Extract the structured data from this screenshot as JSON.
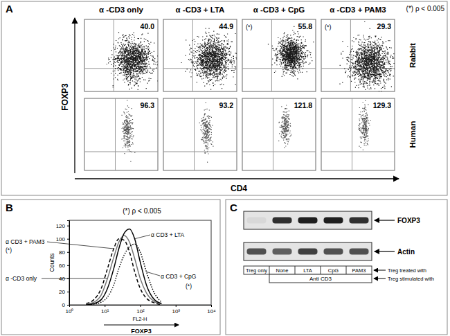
{
  "chart_data": [
    {
      "type": "dot_plot_grid",
      "panel": "A",
      "note": "(*) ρ < 0.005",
      "x_label": "CD4",
      "y_label": "FOXP3",
      "columns": [
        "α -CD3 only",
        "α -CD3 + LTA",
        "α -CD3 + CpG",
        "α -CD3 + PAM3"
      ],
      "series": [
        {
          "name": "Rabbit",
          "values": [
            40.0,
            44.9,
            55.8,
            29.3
          ],
          "value_labels": [
            "40.0",
            "44.9",
            "55.8",
            "29.3"
          ],
          "significance": [
            null,
            null,
            "(*)",
            "(*)"
          ]
        },
        {
          "name": "Human",
          "values": [
            96.3,
            93.2,
            121.8,
            129.3
          ],
          "value_labels": [
            "96.3",
            "93.2",
            "121.8",
            "129.3"
          ]
        }
      ],
      "data_labels": true,
      "tick_labels": false
    },
    {
      "type": "line",
      "panel": "B",
      "title": "(*) ρ < 0.005",
      "x_label": "FL2-H",
      "y_label": "Counts",
      "x_annotation": "FOXP3",
      "log": "x",
      "xlim": [
        1,
        10000
      ],
      "xticks": [
        {
          "value": 1,
          "label": "10⁰"
        },
        {
          "value": 10,
          "label": "10¹"
        },
        {
          "value": 100,
          "label": "10²"
        },
        {
          "value": 1000,
          "label": "10³"
        },
        {
          "value": 10000,
          "label": "10⁴"
        }
      ],
      "ylim": [
        0,
        128
      ],
      "yticks": [
        0,
        20,
        40,
        60,
        80,
        100,
        120
      ],
      "x": [
        3,
        5,
        8,
        12,
        18,
        25,
        35,
        50,
        70,
        100,
        150,
        250,
        400
      ],
      "series": [
        {
          "name": "α CD3 + PAM3",
          "significance": "(*)",
          "color": "#000000",
          "line_style": "dashed",
          "values": [
            2,
            8,
            25,
            55,
            85,
            100,
            98,
            80,
            50,
            25,
            10,
            3,
            0
          ]
        },
        {
          "name": "α -CD3 only",
          "color": "#777777",
          "line_style": "solid",
          "values": [
            1,
            4,
            15,
            40,
            72,
            95,
            105,
            95,
            70,
            40,
            18,
            5,
            1
          ]
        },
        {
          "name": "α CD3 + LTA",
          "color": "#000000",
          "line_style": "solid",
          "values": [
            0,
            2,
            8,
            25,
            55,
            85,
            108,
            115,
            100,
            65,
            30,
            8,
            2
          ]
        },
        {
          "name": "α CD3 + CpG",
          "significance": "(*)",
          "color": "#000000",
          "line_style": "dotted",
          "values": [
            0,
            1,
            4,
            12,
            30,
            55,
            75,
            88,
            92,
            80,
            50,
            18,
            4
          ]
        }
      ]
    }
  ],
  "gel": {
    "panel": "C",
    "rows": [
      {
        "name": "FOXP3",
        "intensity": [
          0.25,
          0.85,
          0.9,
          0.9,
          0.85
        ]
      },
      {
        "name": "Actin",
        "intensity": [
          0.75,
          0.7,
          0.8,
          0.75,
          0.75
        ]
      }
    ],
    "lanes": [
      "Treg only",
      "None",
      "LTA",
      "CpG",
      "PAM3"
    ],
    "treatment_label": "Treg treated with",
    "stimulus": "Anti CD3",
    "stimulus_label": "Treg stimulated with"
  }
}
